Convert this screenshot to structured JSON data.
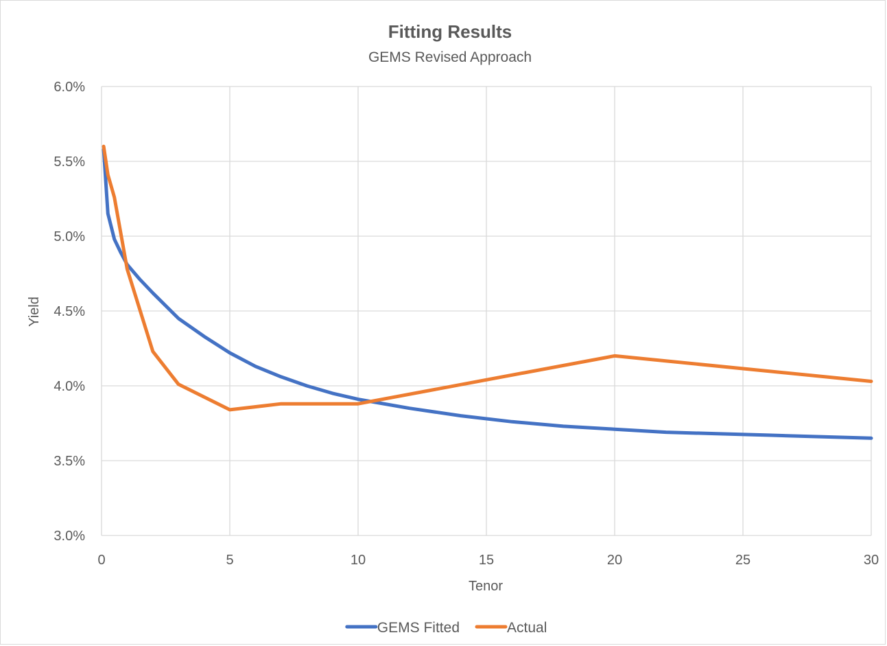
{
  "chart_data": {
    "type": "line",
    "title": "Fitting Results",
    "subtitle": "GEMS Revised Approach",
    "xlabel": "Tenor",
    "ylabel": "Yield",
    "xlim": [
      0,
      30
    ],
    "ylim": [
      0.03,
      0.06
    ],
    "x_ticks": [
      0,
      5,
      10,
      15,
      20,
      25,
      30
    ],
    "x_tick_labels": [
      "0",
      "5",
      "10",
      "15",
      "20",
      "25",
      "30"
    ],
    "y_ticks": [
      0.03,
      0.035,
      0.04,
      0.045,
      0.05,
      0.055,
      0.06
    ],
    "y_tick_labels": [
      "3.0%",
      "3.5%",
      "4.0%",
      "4.5%",
      "5.0%",
      "5.5%",
      "6.0%"
    ],
    "grid": true,
    "legend_position": "bottom",
    "series": [
      {
        "name": "GEMS Fitted",
        "color": "#4472c4",
        "x": [
          0.083,
          0.25,
          0.5,
          0.75,
          1,
          1.5,
          2,
          3,
          4,
          5,
          6,
          7,
          8,
          9,
          10,
          12,
          14,
          16,
          18,
          20,
          22,
          24,
          26,
          28,
          30
        ],
        "values": [
          0.0558,
          0.0515,
          0.0498,
          0.0489,
          0.0481,
          0.0471,
          0.0462,
          0.0445,
          0.0433,
          0.0422,
          0.0413,
          0.0406,
          0.04,
          0.0395,
          0.0391,
          0.0385,
          0.038,
          0.0376,
          0.0373,
          0.0371,
          0.0369,
          0.0368,
          0.0367,
          0.0366,
          0.0365
        ]
      },
      {
        "name": "Actual",
        "color": "#ed7d31",
        "x": [
          0.083,
          0.25,
          0.5,
          1,
          2,
          3,
          5,
          7,
          10,
          20,
          30
        ],
        "values": [
          0.056,
          0.0541,
          0.0526,
          0.0478,
          0.0423,
          0.0401,
          0.0384,
          0.0388,
          0.0388,
          0.042,
          0.0403
        ]
      }
    ]
  }
}
